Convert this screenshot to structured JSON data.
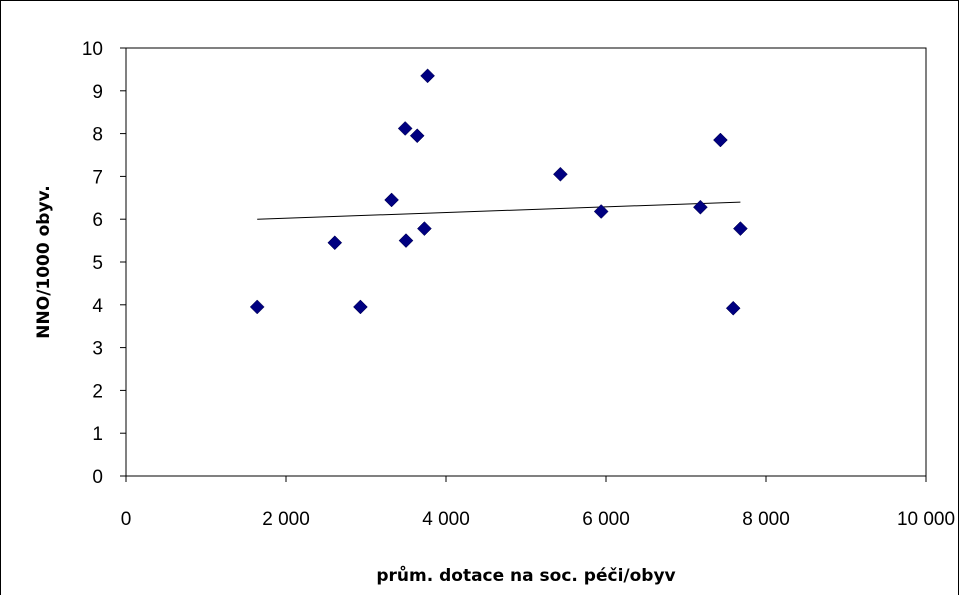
{
  "chart_data": {
    "type": "scatter",
    "title": "",
    "xlabel": "prům. dotace na soc. péči/obyv",
    "ylabel": "NNO/1000 obyv.",
    "xlim": [
      0,
      10000
    ],
    "ylim": [
      0,
      10
    ],
    "x_ticks": [
      "0",
      "2 000",
      "4 000",
      "6 000",
      "8 000",
      "10 000"
    ],
    "y_ticks": [
      "0",
      "1",
      "2",
      "3",
      "4",
      "5",
      "6",
      "7",
      "8",
      "9",
      "10"
    ],
    "grid": false,
    "legend": "none",
    "marker": "diamond",
    "marker_color": "#000080",
    "series": [
      {
        "points": [
          {
            "x": 1640,
            "y": 3.95
          },
          {
            "x": 2610,
            "y": 5.45
          },
          {
            "x": 2930,
            "y": 3.95
          },
          {
            "x": 3320,
            "y": 6.45
          },
          {
            "x": 3490,
            "y": 8.12
          },
          {
            "x": 3500,
            "y": 5.5
          },
          {
            "x": 3640,
            "y": 7.95
          },
          {
            "x": 3730,
            "y": 5.78
          },
          {
            "x": 3770,
            "y": 9.35
          },
          {
            "x": 5430,
            "y": 7.05
          },
          {
            "x": 5940,
            "y": 6.18
          },
          {
            "x": 7180,
            "y": 6.28
          },
          {
            "x": 7430,
            "y": 7.85
          },
          {
            "x": 7590,
            "y": 3.92
          },
          {
            "x": 7680,
            "y": 5.78
          }
        ]
      }
    ],
    "trendline": {
      "type": "linear",
      "x": [
        1640,
        7680
      ],
      "y": [
        6.0,
        6.4
      ],
      "color": "#000000"
    }
  }
}
